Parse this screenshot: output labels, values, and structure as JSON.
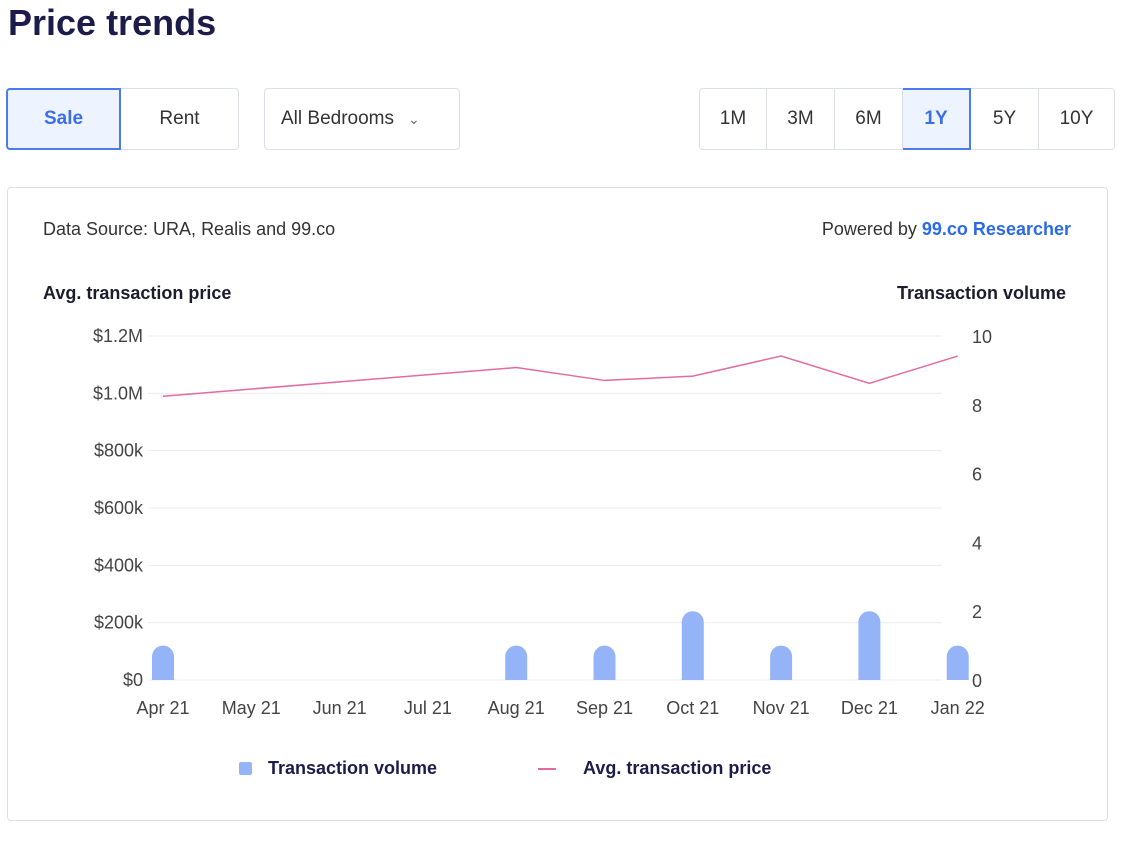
{
  "title": "Price trends",
  "toggle": {
    "sale": "Sale",
    "rent": "Rent"
  },
  "bedrooms": "All Bedrooms",
  "ranges": [
    "1M",
    "3M",
    "6M",
    "1Y",
    "5Y",
    "10Y"
  ],
  "active_range": "1Y",
  "source": "Data Source: URA, Realis and 99.co",
  "powered_prefix": "Powered by",
  "powered_brand": "99.co Researcher",
  "chart_data": {
    "type": "bar+line",
    "categories": [
      "Apr 21",
      "May 21",
      "Jun 21",
      "Jul 21",
      "Aug 21",
      "Sep 21",
      "Oct 21",
      "Nov 21",
      "Dec 21",
      "Jan 22"
    ],
    "ylabel": "Avg. transaction price",
    "y2label": "Transaction volume",
    "yticks": [
      "$0",
      "$200k",
      "$400k",
      "$600k",
      "$800k",
      "$1.0M",
      "$1.2M"
    ],
    "ylim": [
      0,
      1200000
    ],
    "y2ticks": [
      "0",
      "2",
      "4",
      "6",
      "8",
      "10"
    ],
    "y2lim": [
      0,
      10
    ],
    "series": [
      {
        "name": "Transaction volume",
        "type": "bar",
        "axis": "right",
        "color": "#94b4f7",
        "values": [
          1,
          null,
          null,
          null,
          1,
          1,
          2,
          1,
          2,
          1
        ]
      },
      {
        "name": "Avg. transaction price",
        "type": "line",
        "axis": "left",
        "color": "#e36ba0",
        "values": [
          990000,
          null,
          null,
          null,
          1090000,
          1045000,
          1060000,
          1130000,
          1035000,
          1130000
        ]
      }
    ],
    "legend": "bottom"
  }
}
